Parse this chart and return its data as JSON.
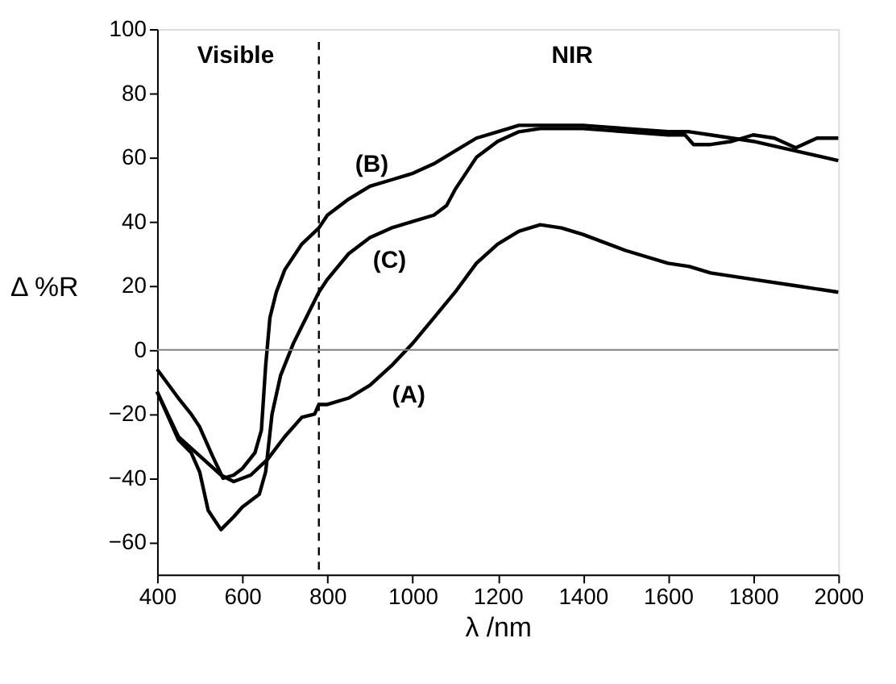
{
  "chart_data": {
    "type": "line",
    "xlabel": "λ /nm",
    "ylabel": "Δ %R",
    "xlim": [
      400,
      2000
    ],
    "xticks": [
      400,
      600,
      800,
      1000,
      1200,
      1400,
      1600,
      1800,
      2000
    ],
    "ylim": [
      -70,
      100
    ],
    "yticks": [
      -60,
      -40,
      -20,
      0,
      20,
      40,
      60,
      80,
      100
    ],
    "line_style": "solid",
    "marker": "none",
    "series": [
      {
        "color": "#000000",
        "x": [
          400,
          450,
          500,
          550,
          580,
          620,
          660,
          700,
          740,
          770,
          780,
          800,
          850,
          900,
          950,
          1000,
          1050,
          1100,
          1150,
          1200,
          1250,
          1300,
          1350,
          1400,
          1500,
          1600,
          1650,
          1700,
          1800,
          1900,
          2000
        ],
        "values": [
          -13,
          -27,
          -33,
          -39,
          -41,
          -39,
          -34,
          -27,
          -21,
          -20,
          -17,
          -17,
          -15,
          -11,
          -5,
          2,
          10,
          18,
          27,
          33,
          37,
          39,
          38,
          36,
          31,
          27,
          26,
          24,
          22,
          20,
          18
        ]
      },
      {
        "color": "#000000",
        "x": [
          400,
          450,
          480,
          500,
          530,
          555,
          580,
          600,
          630,
          645,
          655,
          665,
          680,
          700,
          740,
          780,
          800,
          850,
          900,
          950,
          1000,
          1050,
          1100,
          1150,
          1200,
          1250,
          1300,
          1400,
          1500,
          1600,
          1650,
          1700,
          1800,
          1900,
          2000
        ],
        "values": [
          -6,
          -15,
          -20,
          -24,
          -33,
          -40,
          -39,
          -37,
          -32,
          -25,
          -5,
          10,
          18,
          25,
          33,
          38,
          42,
          47,
          51,
          53,
          55,
          58,
          62,
          66,
          68,
          70,
          70,
          70,
          69,
          68,
          68,
          67,
          65,
          62,
          59
        ]
      },
      {
        "color": "#000000",
        "x": [
          400,
          450,
          480,
          500,
          520,
          550,
          580,
          600,
          640,
          655,
          670,
          690,
          720,
          750,
          780,
          800,
          850,
          900,
          950,
          1000,
          1050,
          1080,
          1100,
          1150,
          1200,
          1250,
          1300,
          1400,
          1500,
          1600,
          1640,
          1660,
          1700,
          1750,
          1800,
          1850,
          1900,
          1950,
          2000
        ],
        "values": [
          -13,
          -28,
          -32,
          -38,
          -50,
          -56,
          -52,
          -49,
          -45,
          -38,
          -20,
          -8,
          2,
          10,
          18,
          22,
          30,
          35,
          38,
          40,
          42,
          45,
          50,
          60,
          65,
          68,
          69,
          69,
          68,
          67,
          67,
          64,
          64,
          65,
          67,
          66,
          63,
          66,
          66
        ]
      }
    ],
    "ref_lines": [
      {
        "axis": "x",
        "value": 780,
        "color": "#000000",
        "line_style": "dashed"
      },
      {
        "axis": "y",
        "value": 0,
        "color": "#808080",
        "line_style": "solid"
      }
    ],
    "annotations": [
      "(A)",
      "(B)",
      "(C)",
      "Visible",
      "NIR"
    ]
  }
}
